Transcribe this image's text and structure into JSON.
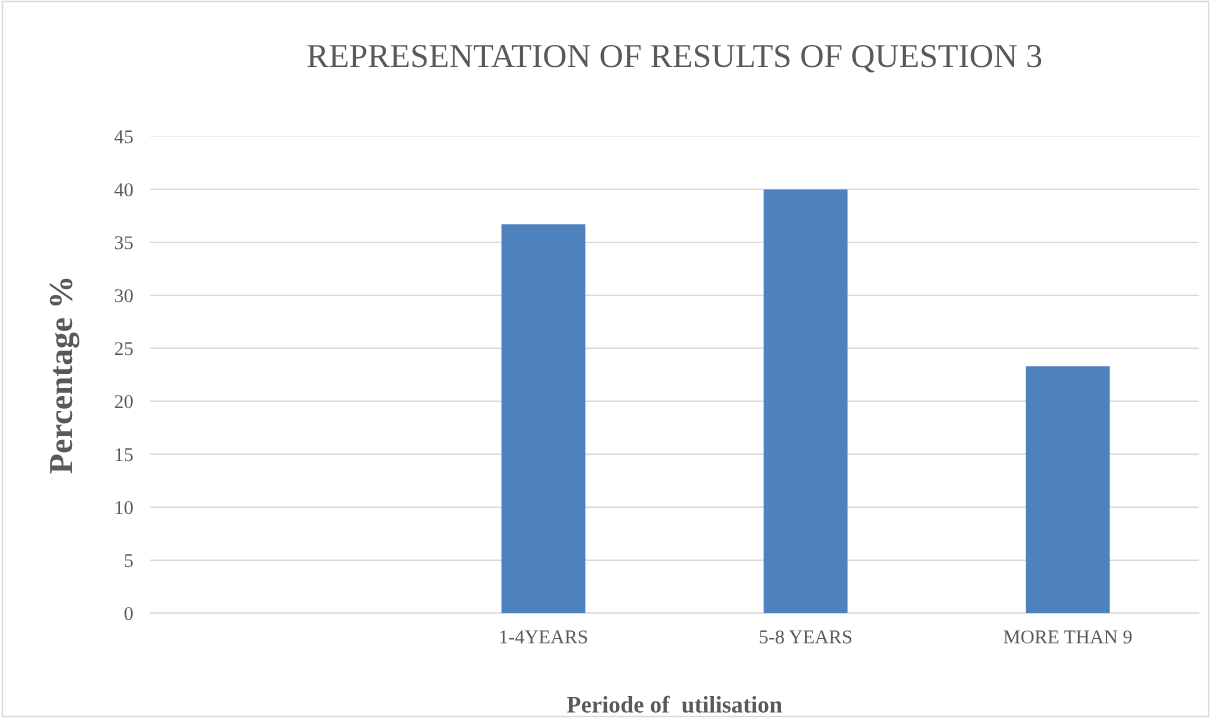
{
  "chart_data": {
    "type": "bar",
    "title": "REPRESENTATION OF RESULTS OF QUESTION 3",
    "xlabel": "Periode of  utilisation",
    "ylabel": "Percentage %",
    "categories": [
      null,
      "1-4YEARS",
      "5-8 YEARS",
      "MORE THAN 9"
    ],
    "values": [
      null,
      36.7,
      40,
      23.3
    ],
    "color": "#4f81bd",
    "ylim": [
      0,
      45
    ],
    "yticks": [
      0,
      5,
      10,
      15,
      20,
      25,
      30,
      35,
      40,
      45
    ],
    "grid": "y",
    "legend": false
  }
}
